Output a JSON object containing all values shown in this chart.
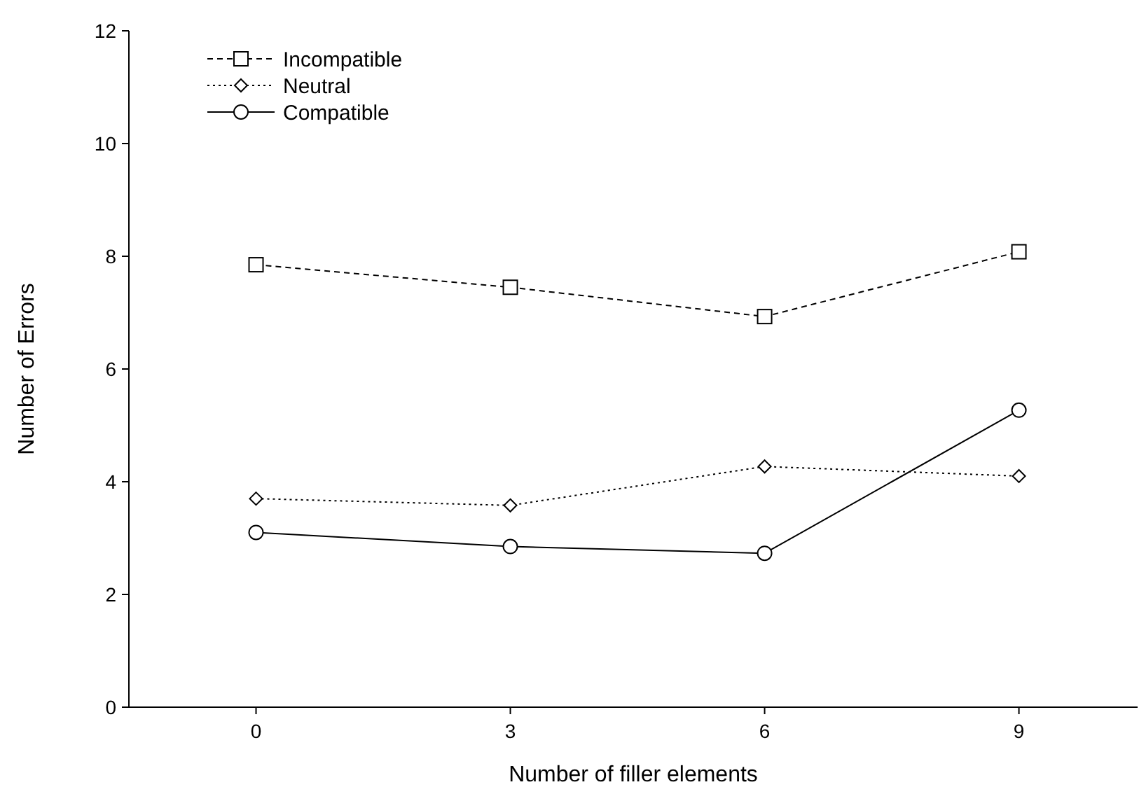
{
  "chart_data": {
    "type": "line",
    "xlabel": "Number of filler elements",
    "ylabel": "Number of Errors",
    "x": [
      0,
      3,
      6,
      9
    ],
    "xlim": [
      -1.5,
      10.4
    ],
    "xticks": [
      0,
      3,
      6,
      9
    ],
    "ylim": [
      0,
      12
    ],
    "yticks": [
      0,
      2,
      4,
      6,
      8,
      10,
      12
    ],
    "series": [
      {
        "name": "Incompatible",
        "color": "#000000",
        "values": [
          7.85,
          7.45,
          6.93,
          8.08
        ],
        "marker": "square",
        "line_style": "dashed"
      },
      {
        "name": "Neutral",
        "color": "#000000",
        "values": [
          3.7,
          3.58,
          4.27,
          4.1
        ],
        "marker": "diamond",
        "line_style": "dotted"
      },
      {
        "name": "Compatible",
        "color": "#000000",
        "values": [
          3.1,
          2.85,
          2.73,
          5.27
        ],
        "marker": "circle",
        "line_style": "solid"
      }
    ],
    "legend": "top left",
    "grid": false
  }
}
